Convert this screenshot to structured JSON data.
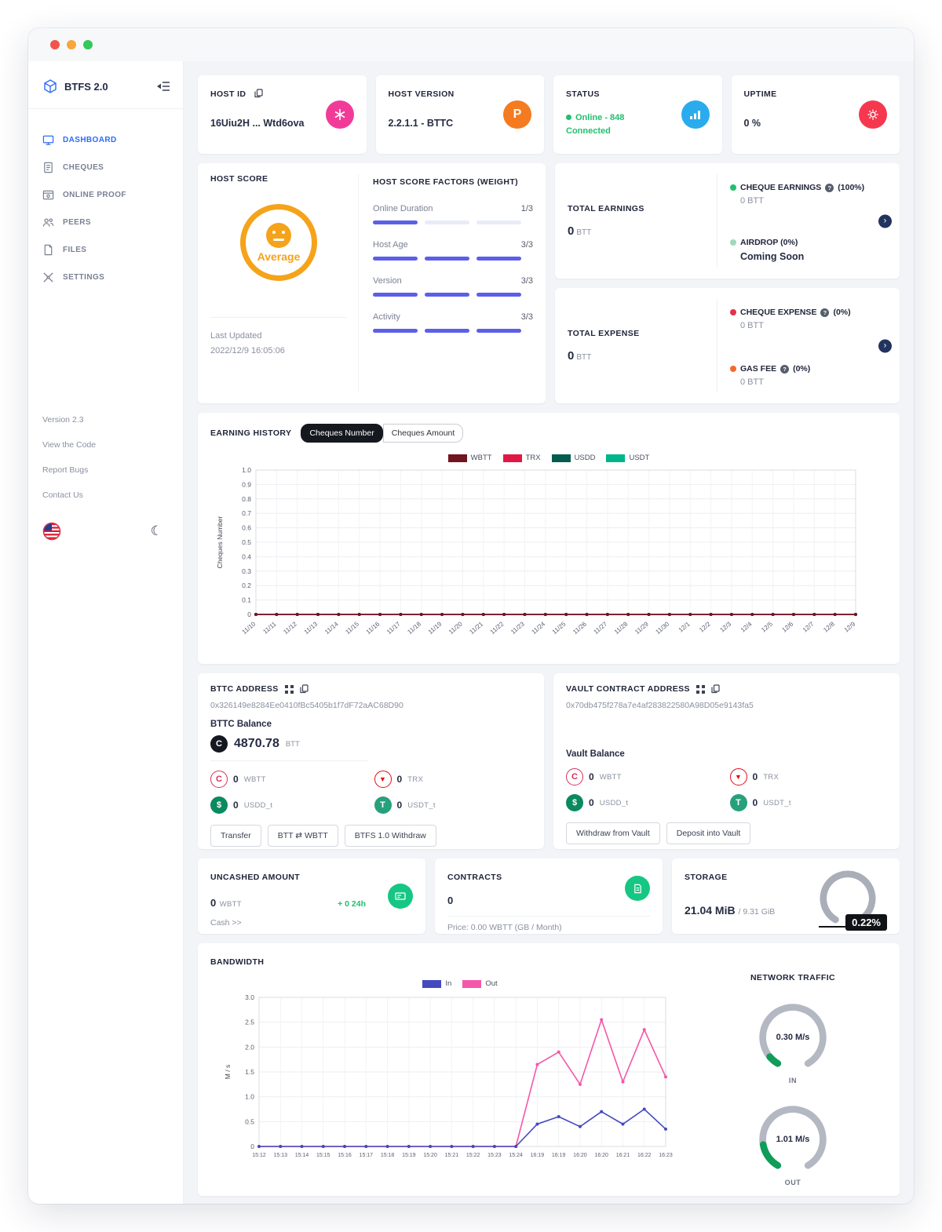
{
  "sidebar": {
    "logo": "BTFS 2.0",
    "items": [
      {
        "label": "DASHBOARD"
      },
      {
        "label": "CHEQUES"
      },
      {
        "label": "ONLINE PROOF"
      },
      {
        "label": "PEERS"
      },
      {
        "label": "FILES"
      },
      {
        "label": "SETTINGS"
      }
    ],
    "footer_links": [
      {
        "label": "Version 2.3"
      },
      {
        "label": "View the Code"
      },
      {
        "label": "Report Bugs"
      },
      {
        "label": "Contact Us"
      }
    ]
  },
  "top_cards": {
    "host_id": {
      "title": "HOST ID",
      "value": "16Uiu2H ... Wtd6ova"
    },
    "host_version": {
      "title": "HOST VERSION",
      "value": "2.2.1.1 - BTTC"
    },
    "status": {
      "title": "STATUS",
      "value": "Online - 848 Connected"
    },
    "uptime": {
      "title": "UPTIME",
      "value": "0 %"
    }
  },
  "host_score": {
    "title": "HOST SCORE",
    "rating": "Average",
    "last_updated_label": "Last Updated",
    "last_updated": "2022/12/9 16:05:06"
  },
  "factors": {
    "title": "HOST SCORE FACTORS (WEIGHT)",
    "items": [
      {
        "label": "Online Duration",
        "value": "1/3",
        "filled": 1
      },
      {
        "label": "Host Age",
        "value": "3/3",
        "filled": 3
      },
      {
        "label": "Version",
        "value": "3/3",
        "filled": 3
      },
      {
        "label": "Activity",
        "value": "3/3",
        "filled": 3
      }
    ]
  },
  "earnings": {
    "title": "TOTAL EARNINGS",
    "amount": "0",
    "unit": "BTT",
    "row1": {
      "label": "CHEQUE EARNINGS",
      "pct": "(100%)",
      "value": "0 BTT",
      "dot": "#21c06d"
    },
    "row2": {
      "label": "AIRDROP (0%)",
      "value": "Coming Soon",
      "dot": "#9fd9bb"
    }
  },
  "expense": {
    "title": "TOTAL EXPENSE",
    "amount": "0",
    "unit": "BTT",
    "row1": {
      "label": "CHEQUE EXPENSE",
      "pct": "(0%)",
      "value": "0 BTT",
      "dot": "#e8304a"
    },
    "row2": {
      "label": "GAS FEE",
      "pct": "(0%)",
      "value": "0 BTT",
      "dot": "#f4692a"
    }
  },
  "earning_history": {
    "title": "EARNING HISTORY",
    "tabs": [
      {
        "label": "Cheques Number",
        "active": true
      },
      {
        "label": "Cheques Amount",
        "active": false
      }
    ],
    "legend": [
      {
        "name": "WBTT",
        "color": "#731421"
      },
      {
        "name": "TRX",
        "color": "#e11845"
      },
      {
        "name": "USDD",
        "color": "#035c4e"
      },
      {
        "name": "USDT",
        "color": "#00b589"
      }
    ],
    "chart": {
      "type": "line",
      "ylabel": "Cheques Number",
      "ylim": [
        0,
        1.0
      ],
      "ystep": 0.1,
      "x": [
        "11/10",
        "11/11",
        "11/12",
        "11/13",
        "11/14",
        "11/15",
        "11/16",
        "11/17",
        "11/18",
        "11/19",
        "11/20",
        "11/21",
        "11/22",
        "11/23",
        "11/24",
        "11/25",
        "11/26",
        "11/27",
        "11/28",
        "11/29",
        "11/30",
        "12/1",
        "12/2",
        "12/3",
        "12/4",
        "12/5",
        "12/6",
        "12/7",
        "12/8",
        "12/9"
      ],
      "series": [
        {
          "name": "USDT",
          "color": "#00b589",
          "values": [
            0,
            0,
            0,
            0,
            0,
            0,
            0,
            0,
            0,
            0,
            0,
            0,
            0,
            0,
            0,
            0,
            0,
            0,
            0,
            0,
            0,
            0,
            0,
            0,
            0,
            0,
            0,
            0,
            0,
            0
          ]
        },
        {
          "name": "USDD",
          "color": "#035c4e",
          "values": [
            0,
            0,
            0,
            0,
            0,
            0,
            0,
            0,
            0,
            0,
            0,
            0,
            0,
            0,
            0,
            0,
            0,
            0,
            0,
            0,
            0,
            0,
            0,
            0,
            0,
            0,
            0,
            0,
            0,
            0
          ]
        },
        {
          "name": "TRX",
          "color": "#e11845",
          "values": [
            0,
            0,
            0,
            0,
            0,
            0,
            0,
            0,
            0,
            0,
            0,
            0,
            0,
            0,
            0,
            0,
            0,
            0,
            0,
            0,
            0,
            0,
            0,
            0,
            0,
            0,
            0,
            0,
            0,
            0
          ]
        },
        {
          "name": "WBTT",
          "color": "#731421",
          "values": [
            0,
            0,
            0,
            0,
            0,
            0,
            0,
            0,
            0,
            0,
            0,
            0,
            0,
            0,
            0,
            0,
            0,
            0,
            0,
            0,
            0,
            0,
            0,
            0,
            0,
            0,
            0,
            0,
            0,
            0
          ]
        }
      ]
    }
  },
  "bttc": {
    "title": "BTTC ADDRESS",
    "address": "0x326149e8284Ee0410fBc5405b1f7dF72aAC68D90",
    "balance_label": "BTTC Balance",
    "balance": "4870.78",
    "balance_unit": "BTT",
    "tokens": [
      {
        "value": "0",
        "symbol": "WBTT"
      },
      {
        "value": "0",
        "symbol": "TRX"
      },
      {
        "value": "0",
        "symbol": "USDD_t"
      },
      {
        "value": "0",
        "symbol": "USDT_t"
      }
    ],
    "buttons": [
      {
        "label": "Transfer"
      },
      {
        "label": "BTT ⇄ WBTT"
      },
      {
        "label": "BTFS 1.0 Withdraw"
      }
    ]
  },
  "vault": {
    "title": "VAULT CONTRACT ADDRESS",
    "address": "0x70db475f278a7e4af283822580A98D05e9143fa5",
    "balance_label": "Vault Balance",
    "tokens": [
      {
        "value": "0",
        "symbol": "WBTT"
      },
      {
        "value": "0",
        "symbol": "TRX"
      },
      {
        "value": "0",
        "symbol": "USDD_t"
      },
      {
        "value": "0",
        "symbol": "USDT_t"
      }
    ],
    "buttons": [
      {
        "label": "Withdraw from Vault"
      },
      {
        "label": "Deposit into Vault"
      }
    ]
  },
  "uncashed": {
    "title": "UNCASHED AMOUNT",
    "amount": "0",
    "unit": "WBTT",
    "delta": "+ 0 24h",
    "link": "Cash >>"
  },
  "contracts": {
    "title": "CONTRACTS",
    "count": "0",
    "price": "Price: 0.00 WBTT (GB / Month)"
  },
  "storage": {
    "title": "STORAGE",
    "used": "21.04 MiB",
    "total": "/ 9.31 GiB",
    "percent": "0.22%"
  },
  "bandwidth": {
    "title": "BANDWIDTH",
    "legend": [
      {
        "name": "In",
        "color": "#4549c0"
      },
      {
        "name": "Out",
        "color": "#f556a9"
      }
    ],
    "chart": {
      "type": "line",
      "ylabel": "M / s",
      "ylim": [
        0,
        3.0
      ],
      "ystep": 0.5,
      "x": [
        "15:12",
        "15:13",
        "15:14",
        "15:15",
        "15:16",
        "15:17",
        "15:18",
        "15:19",
        "15:20",
        "15:21",
        "15:22",
        "15:23",
        "15:24",
        "16:19",
        "16:19",
        "16:20",
        "16:20",
        "16:21",
        "16:22",
        "16:23"
      ],
      "series": [
        {
          "name": "Out",
          "color": "#f556a9",
          "values": [
            0,
            0,
            0,
            0,
            0,
            0,
            0,
            0,
            0,
            0,
            0,
            0,
            0,
            1.65,
            1.9,
            1.25,
            2.55,
            1.3,
            2.35,
            1.4
          ]
        },
        {
          "name": "In",
          "color": "#4549c0",
          "values": [
            0,
            0,
            0,
            0,
            0,
            0,
            0,
            0,
            0,
            0,
            0,
            0,
            0,
            0.45,
            0.6,
            0.4,
            0.7,
            0.45,
            0.75,
            0.35
          ]
        }
      ]
    }
  },
  "network": {
    "title": "NETWORK TRAFFIC",
    "in": {
      "value": "0.30 M/s",
      "label": "IN"
    },
    "out": {
      "value": "1.01 M/s",
      "label": "OUT"
    }
  }
}
